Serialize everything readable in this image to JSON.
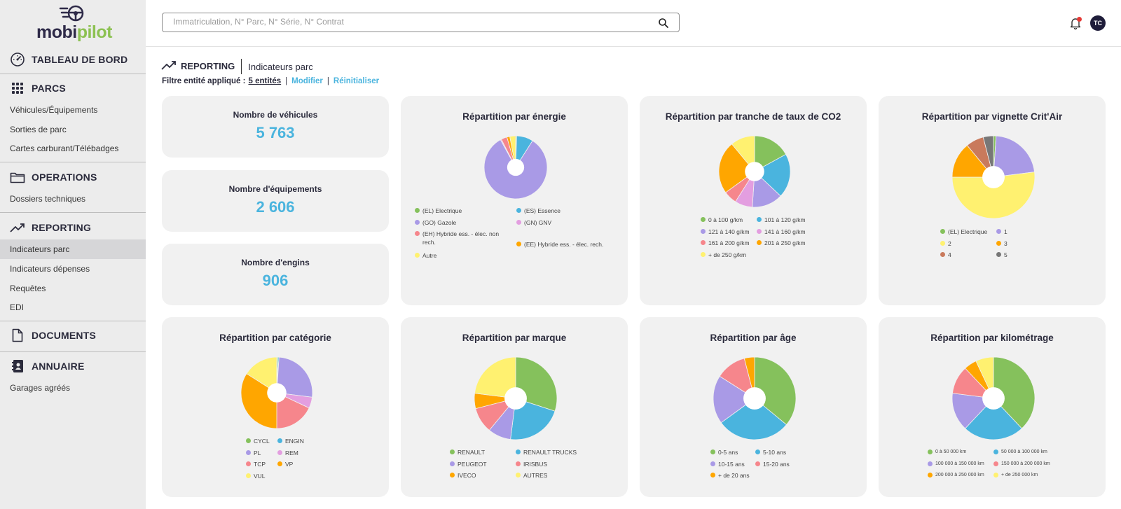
{
  "brand": {
    "part1": "mobi",
    "part2": "pilot"
  },
  "sidebar": {
    "sections": [
      {
        "label": "TABLEAU DE BORD",
        "icon": "dashboard-gauge-icon"
      },
      {
        "label": "PARCS",
        "icon": "grid-dots-icon"
      },
      {
        "label": "OPERATIONS",
        "icon": "folder-icon"
      },
      {
        "label": "REPORTING",
        "icon": "trend-up-icon"
      },
      {
        "label": "DOCUMENTS",
        "icon": "document-icon"
      },
      {
        "label": "ANNUAIRE",
        "icon": "address-book-icon"
      }
    ],
    "items": [
      {
        "label": "Véhicules/Équipements"
      },
      {
        "label": "Sorties de parc"
      },
      {
        "label": "Cartes carburant/Télébadges"
      },
      {
        "label": "Dossiers techniques"
      },
      {
        "label": "Indicateurs parc",
        "active": true
      },
      {
        "label": "Indicateurs dépenses"
      },
      {
        "label": "Requêtes"
      },
      {
        "label": "EDI"
      },
      {
        "label": "Garages agréés"
      }
    ]
  },
  "search": {
    "placeholder": "Immatriculation, N° Parc, N° Série, N° Contrat",
    "value": ""
  },
  "user": {
    "initials": "TC"
  },
  "breadcrumb": {
    "main": "REPORTING",
    "sub": "Indicateurs parc"
  },
  "filter": {
    "label": "Filtre entité appliqué :",
    "entities": "5 entités",
    "sep": "|",
    "modify": "Modifier",
    "reset": "Réinitialiser"
  },
  "kpis": [
    {
      "title": "Nombre de véhicules",
      "value": "5 763"
    },
    {
      "title": "Nombre d'équipements",
      "value": "2 606"
    },
    {
      "title": "Nombre d'engins",
      "value": "906"
    }
  ],
  "colors": {
    "green": "#85c15c",
    "blue": "#4ab4de",
    "purple": "#a99ae6",
    "pink": "#e39ee0",
    "red": "#f6868c",
    "orange": "#ffa600",
    "yellow": "#fff170",
    "brown": "#c97a5c",
    "grey": "#777777"
  },
  "chart_data": [
    {
      "type": "pie",
      "title": "Répartition par énergie",
      "categories": [
        "(EL) Electrique",
        "(ES) Essence",
        "(GO) Gazole",
        "(GN) GNV",
        "(EH) Hybride ess. - élec. non rech.",
        "(EE) Hybride ess. - élec. rech.",
        "Autre"
      ],
      "values": [
        0.5,
        8.5,
        83,
        0.5,
        3,
        1.5,
        3
      ],
      "colors": [
        "#85c15c",
        "#4ab4de",
        "#a99ae6",
        "#e39ee0",
        "#f6868c",
        "#ffa600",
        "#fff170"
      ]
    },
    {
      "type": "pie",
      "title": "Répartition par tranche de taux de CO2",
      "categories": [
        "0 à 100 g/km",
        "101 à 120 g/km",
        "121 à 140 g/km",
        "141 à 160 g/km",
        "161 à 200 g/km",
        "201 à 250 g/km",
        "+ de 250 g/km"
      ],
      "values": [
        17,
        20,
        14,
        8,
        6,
        24,
        11
      ],
      "colors": [
        "#85c15c",
        "#4ab4de",
        "#a99ae6",
        "#e39ee0",
        "#f6868c",
        "#ffa600",
        "#fff170"
      ]
    },
    {
      "type": "pie",
      "title": "Répartition par vignette Crit'Air",
      "categories": [
        "(EL) Electrique",
        "1",
        "2",
        "3",
        "4",
        "5"
      ],
      "values": [
        1,
        22,
        52,
        14,
        7,
        4
      ],
      "colors": [
        "#85c15c",
        "#a99ae6",
        "#fff170",
        "#ffa600",
        "#c97a5c",
        "#777777"
      ]
    },
    {
      "type": "pie",
      "title": "Répartition par catégorie",
      "categories": [
        "CYCL",
        "ENGIN",
        "PL",
        "REM",
        "TCP",
        "VP",
        "VUL"
      ],
      "values": [
        0.5,
        0.5,
        26,
        5,
        18,
        34,
        16
      ],
      "colors": [
        "#85c15c",
        "#4ab4de",
        "#a99ae6",
        "#e39ee0",
        "#f6868c",
        "#ffa600",
        "#fff170"
      ]
    },
    {
      "type": "pie",
      "title": "Répartition par marque",
      "categories": [
        "RENAULT",
        "RENAULT TRUCKS",
        "PEUGEOT",
        "IRISBUS",
        "IVECO",
        "AUTRES"
      ],
      "values": [
        30,
        22,
        9,
        10,
        6,
        23
      ],
      "colors": [
        "#85c15c",
        "#4ab4de",
        "#a99ae6",
        "#f6868c",
        "#ffa600",
        "#fff170"
      ]
    },
    {
      "type": "pie",
      "title": "Répartition par âge",
      "categories": [
        "0-5 ans",
        "5-10 ans",
        "10-15 ans",
        "15-20 ans",
        "+ de 20 ans"
      ],
      "values": [
        36,
        29,
        19,
        12,
        4
      ],
      "colors": [
        "#85c15c",
        "#4ab4de",
        "#a99ae6",
        "#f6868c",
        "#ffa600"
      ]
    },
    {
      "type": "pie",
      "title": "Répartition par kilométrage",
      "categories": [
        "0 à 50 000 km",
        "50 000 à 100 000 km",
        "100 000 à 150 000 km",
        "150 000 à 200 000 km",
        "200 000 à 250 000 km",
        "+ de 250 000 km"
      ],
      "values": [
        38,
        24,
        15,
        11,
        5,
        7
      ],
      "colors": [
        "#85c15c",
        "#4ab4de",
        "#a99ae6",
        "#f6868c",
        "#ffa600",
        "#fff170"
      ]
    }
  ]
}
